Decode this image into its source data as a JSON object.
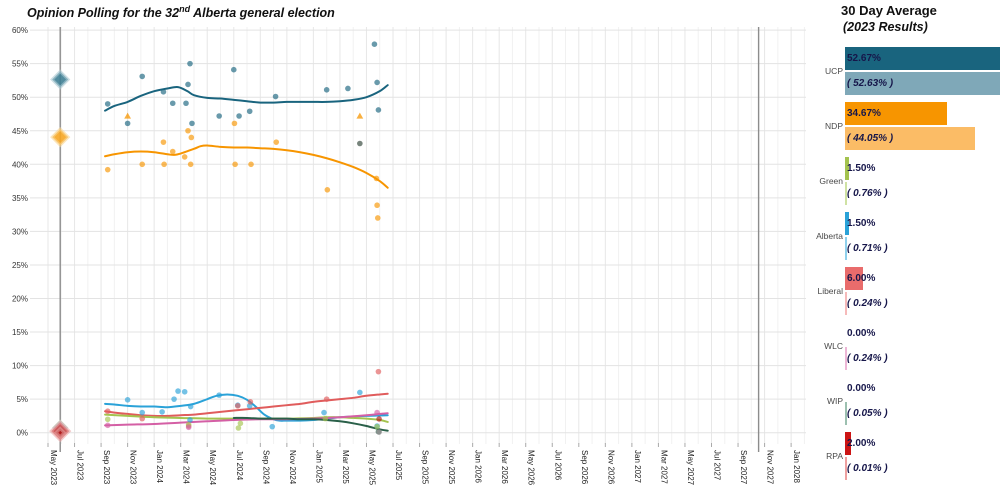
{
  "title": {
    "prefix": "Opinion Polling for the 32",
    "ordinal": "nd",
    "suffix": " Alberta general election"
  },
  "legend_panel": {
    "title": "30 Day Average",
    "subtitle": "(2023 Results)",
    "parties": [
      {
        "name": "UCP",
        "avg_label": "52.67%",
        "avg": 52.67,
        "result_label": "( 52.63% )",
        "result": 52.63,
        "avg_color": "#19647e",
        "result_color": "#7fa8b8"
      },
      {
        "name": "NDP",
        "avg_label": "34.67%",
        "avg": 34.67,
        "result_label": "( 44.05% )",
        "result": 44.05,
        "avg_color": "#f79500",
        "result_color": "#fbbc66"
      },
      {
        "name": "Green",
        "avg_label": "1.50%",
        "avg": 1.5,
        "result_label": "( 0.76% )",
        "result": 0.76,
        "avg_color": "#a4c34f",
        "result_color": "#cfe2a3"
      },
      {
        "name": "Alberta",
        "avg_label": "1.50%",
        "avg": 1.5,
        "result_label": "( 0.71% )",
        "result": 0.71,
        "avg_color": "#2aa2d8",
        "result_color": "#8fd0ec"
      },
      {
        "name": "Liberal",
        "avg_label": "6.00%",
        "avg": 6.0,
        "result_label": "( 0.24% )",
        "result": 0.24,
        "avg_color": "#e96c6c",
        "result_color": "#f6baba"
      },
      {
        "name": "WLC",
        "avg_label": "0.00%",
        "avg": 0.0,
        "result_label": "( 0.24% )",
        "result": 0.24,
        "avg_color": "#d45fa5",
        "result_color": "#edb6d6"
      },
      {
        "name": "WIP",
        "avg_label": "0.00%",
        "avg": 0.0,
        "result_label": "( 0.05% )",
        "result": 0.05,
        "avg_color": "#2a6049",
        "result_color": "#9cc0b0"
      },
      {
        "name": "RPA",
        "avg_label": "2.00%",
        "avg": 2.0,
        "result_label": "( 0.01% )",
        "result": 0.01,
        "avg_color": "#cc1414",
        "result_color": "#eea0a0"
      }
    ]
  },
  "chart_data": {
    "type": "scatter",
    "title": "Opinion Polling for the 32nd Alberta general election",
    "x_unit": "months_since_May_2023",
    "x_axis": {
      "tick_step_months": 2,
      "tick_labels": [
        "May 2023",
        "Jul 2023",
        "Sep 2023",
        "Nov 2023",
        "Jan 2024",
        "Mar 2024",
        "May 2024",
        "Jul 2024",
        "Sep 2024",
        "Nov 2024",
        "Jan 2025",
        "Mar 2025",
        "May 2025",
        "Jul 2025",
        "Sep 2025",
        "Nov 2025",
        "Jan 2026",
        "Mar 2026",
        "May 2026",
        "Jul 2026",
        "Sep 2026",
        "Nov 2026",
        "Jan 2027",
        "Mar 2027",
        "May 2027",
        "Jul 2027",
        "Sep 2027",
        "Nov 2027",
        "Jan 2028"
      ]
    },
    "y_axis": {
      "min": 0,
      "max": 60,
      "step": 5,
      "unit": "%"
    },
    "grid": true,
    "election_lines": [
      {
        "name": "2023 election",
        "m": 0.92
      },
      {
        "name": "next election",
        "m": 53.55
      }
    ],
    "election_results": [
      {
        "party": "UCP",
        "value": 52.63,
        "color": "#3f7f95",
        "halo": "#aac8d2",
        "size": 8
      },
      {
        "party": "NDP",
        "value": 44.05,
        "color": "#f6a623",
        "halo": "#f8d48e",
        "size": 8
      },
      {
        "party": "Green",
        "value": 0.76,
        "color": "#a4c34f",
        "halo": "#d0e2a0",
        "size": 6
      },
      {
        "party": "Alberta",
        "value": 0.71,
        "color": "#2aa2d8",
        "halo": "#9ed6ee",
        "size": 6
      },
      {
        "party": "WLC",
        "value": 0.24,
        "color": "#d45fa5",
        "halo": "#edb6d6",
        "size": 5
      },
      {
        "party": "WIP",
        "value": 0.05,
        "color": "#2a6049",
        "halo": "#9cc0b0",
        "size": 4.5
      },
      {
        "party": "Liberal",
        "value": 0.24,
        "color": "#cd4f4f",
        "halo": "#eba5a5",
        "size": 9
      },
      {
        "party": "RPA",
        "value": 0.01,
        "color": "#b01818",
        "halo": "#e59c9c",
        "size": 4
      }
    ],
    "series": [
      {
        "name": "UCP",
        "color": "#19647e",
        "trend": [
          [
            4.3,
            48.0
          ],
          [
            5,
            48.7
          ],
          [
            6,
            49.3
          ],
          [
            7,
            50.2
          ],
          [
            8,
            50.9
          ],
          [
            9,
            51.3
          ],
          [
            9.8,
            51.5
          ],
          [
            10.5,
            50.9
          ],
          [
            11,
            50.3
          ],
          [
            12,
            49.9
          ],
          [
            13,
            49.8
          ],
          [
            14,
            49.6
          ],
          [
            15,
            49.4
          ],
          [
            16,
            49.2
          ],
          [
            17,
            49.2
          ],
          [
            18,
            49.3
          ],
          [
            19,
            49.3
          ],
          [
            20,
            49.3
          ],
          [
            21,
            49.3
          ],
          [
            22,
            49.4
          ],
          [
            23,
            49.6
          ],
          [
            24,
            50.0
          ],
          [
            25,
            50.9
          ],
          [
            25.6,
            51.8
          ]
        ],
        "points": [
          [
            4.5,
            49.0
          ],
          [
            6.0,
            46.1
          ],
          [
            7.1,
            53.1
          ],
          [
            8.7,
            50.8
          ],
          [
            9.4,
            49.1
          ],
          [
            10.4,
            49.1
          ],
          [
            10.55,
            51.9
          ],
          [
            10.7,
            55.0
          ],
          [
            10.85,
            46.1
          ],
          [
            12.9,
            47.2
          ],
          [
            14.0,
            54.1
          ],
          [
            14.4,
            47.2
          ],
          [
            15.2,
            47.9
          ],
          [
            17.15,
            50.1
          ],
          [
            21.0,
            51.1
          ],
          [
            22.6,
            51.3
          ],
          [
            24.6,
            57.9
          ],
          [
            24.8,
            52.2
          ],
          [
            24.9,
            48.1
          ]
        ],
        "triangles": []
      },
      {
        "name": "NDP",
        "color": "#f79500",
        "trend": [
          [
            4.3,
            41.2
          ],
          [
            5,
            41.5
          ],
          [
            6,
            41.8
          ],
          [
            7,
            41.9
          ],
          [
            8,
            41.8
          ],
          [
            9,
            41.5
          ],
          [
            9.5,
            41.4
          ],
          [
            10,
            41.6
          ],
          [
            11,
            42.3
          ],
          [
            11.5,
            42.7
          ],
          [
            12,
            42.8
          ],
          [
            13,
            42.6
          ],
          [
            14,
            42.5
          ],
          [
            15,
            42.5
          ],
          [
            16,
            42.4
          ],
          [
            17,
            42.3
          ],
          [
            18,
            42.1
          ],
          [
            19,
            41.8
          ],
          [
            20,
            41.4
          ],
          [
            21,
            40.9
          ],
          [
            22,
            40.3
          ],
          [
            23,
            39.6
          ],
          [
            24,
            38.7
          ],
          [
            25,
            37.5
          ],
          [
            25.6,
            36.5
          ]
        ],
        "points": [
          [
            4.5,
            39.2
          ],
          [
            7.1,
            40.0
          ],
          [
            8.7,
            43.3
          ],
          [
            8.75,
            40.0
          ],
          [
            9.4,
            41.9
          ],
          [
            10.3,
            41.1
          ],
          [
            10.55,
            45.0
          ],
          [
            10.8,
            44.0
          ],
          [
            10.75,
            40.0
          ],
          [
            14.05,
            46.1
          ],
          [
            14.1,
            40.0
          ],
          [
            15.3,
            40.0
          ],
          [
            17.2,
            43.3
          ],
          [
            21.05,
            36.2
          ],
          [
            24.75,
            37.9
          ],
          [
            24.8,
            33.9
          ],
          [
            24.85,
            32.0
          ]
        ],
        "triangles": [
          [
            6.0,
            47.2
          ],
          [
            23.5,
            47.2
          ]
        ]
      },
      {
        "name": "Alberta",
        "color": "#2aa2d8",
        "trend": [
          [
            4.3,
            4.3
          ],
          [
            5,
            4.2
          ],
          [
            6,
            4.0
          ],
          [
            7,
            3.9
          ],
          [
            8,
            3.9
          ],
          [
            9,
            3.8
          ],
          [
            10,
            4.0
          ],
          [
            11,
            4.3
          ],
          [
            12,
            5.0
          ],
          [
            12.7,
            5.5
          ],
          [
            13.5,
            5.7
          ],
          [
            14.3,
            5.5
          ],
          [
            15,
            4.9
          ],
          [
            15.7,
            3.8
          ],
          [
            16.3,
            2.7
          ],
          [
            17,
            2.0
          ],
          [
            17.5,
            1.8
          ],
          [
            18,
            1.8
          ],
          [
            19,
            1.8
          ],
          [
            20,
            1.9
          ],
          [
            21,
            2.1
          ],
          [
            22,
            2.3
          ],
          [
            23,
            2.4
          ],
          [
            24,
            2.5
          ],
          [
            25.6,
            2.6
          ]
        ],
        "points": [
          [
            6.0,
            4.9
          ],
          [
            7.1,
            3.0
          ],
          [
            8.6,
            3.1
          ],
          [
            9.5,
            5.0
          ],
          [
            9.8,
            6.2
          ],
          [
            10.3,
            6.1
          ],
          [
            10.75,
            3.9
          ],
          [
            10.7,
            1.9
          ],
          [
            12.9,
            5.6
          ],
          [
            14.3,
            4.1
          ],
          [
            15.2,
            4.0
          ],
          [
            16.9,
            0.9
          ],
          [
            20.8,
            3.0
          ],
          [
            23.5,
            6.0
          ],
          [
            24.8,
            1.0
          ]
        ],
        "triangles": []
      },
      {
        "name": "Liberal",
        "color": "#e05c5c",
        "trend": [
          [
            4.3,
            3.2
          ],
          [
            5,
            3.0
          ],
          [
            6,
            2.8
          ],
          [
            7,
            2.6
          ],
          [
            8,
            2.5
          ],
          [
            9,
            2.5
          ],
          [
            10,
            2.6
          ],
          [
            11,
            2.7
          ],
          [
            12,
            2.9
          ],
          [
            13,
            3.1
          ],
          [
            14,
            3.3
          ],
          [
            15,
            3.5
          ],
          [
            16,
            3.7
          ],
          [
            17,
            3.9
          ],
          [
            18,
            4.1
          ],
          [
            19,
            4.3
          ],
          [
            20,
            4.6
          ],
          [
            21,
            4.8
          ],
          [
            22,
            5.0
          ],
          [
            23,
            5.2
          ],
          [
            24,
            5.5
          ],
          [
            25,
            5.7
          ],
          [
            25.6,
            5.8
          ]
        ],
        "points": [
          [
            4.5,
            3.2
          ],
          [
            7.1,
            2.1
          ],
          [
            10.6,
            1.0
          ],
          [
            14.3,
            4.0
          ],
          [
            15.25,
            4.6
          ],
          [
            21.0,
            5.0
          ],
          [
            24.9,
            9.1
          ]
        ],
        "triangles": []
      },
      {
        "name": "Green",
        "color": "#a4c34f",
        "trend": [
          [
            4.3,
            2.7
          ],
          [
            6,
            2.5
          ],
          [
            8,
            2.3
          ],
          [
            10,
            2.2
          ],
          [
            12,
            2.1
          ],
          [
            14,
            2.1
          ],
          [
            16,
            2.1
          ],
          [
            18,
            2.1
          ],
          [
            20,
            2.2
          ],
          [
            21,
            2.3
          ],
          [
            22,
            2.3
          ],
          [
            23,
            2.2
          ],
          [
            24,
            2.1
          ],
          [
            25,
            1.9
          ],
          [
            25.6,
            1.6
          ]
        ],
        "points": [
          [
            4.5,
            2.0
          ],
          [
            10.6,
            1.2
          ],
          [
            14.35,
            0.7
          ],
          [
            14.5,
            1.4
          ],
          [
            20.9,
            2.1
          ],
          [
            24.8,
            0.9
          ]
        ],
        "triangles": []
      },
      {
        "name": "WLC",
        "color": "#d45fa5",
        "trend": [
          [
            4.3,
            1.1
          ],
          [
            6,
            1.2
          ],
          [
            8,
            1.3
          ],
          [
            10,
            1.5
          ],
          [
            12,
            1.7
          ],
          [
            14,
            1.9
          ],
          [
            16,
            2.0
          ],
          [
            18,
            2.0
          ],
          [
            20,
            2.1
          ],
          [
            22,
            2.3
          ],
          [
            24,
            2.6
          ],
          [
            25,
            2.8
          ],
          [
            25.6,
            2.9
          ]
        ],
        "points": [
          [
            4.5,
            1.1
          ],
          [
            10.6,
            0.8
          ],
          [
            24.8,
            3.0
          ]
        ],
        "triangles": []
      },
      {
        "name": "WIP",
        "color": "#2a6049",
        "trend": [
          [
            14,
            2.2
          ],
          [
            15,
            2.2
          ],
          [
            16,
            2.1
          ],
          [
            17,
            2.1
          ],
          [
            18,
            2.1
          ],
          [
            19,
            2.0
          ],
          [
            20,
            2.0
          ],
          [
            21,
            1.9
          ],
          [
            22,
            1.7
          ],
          [
            23,
            1.4
          ],
          [
            24,
            1.0
          ],
          [
            25,
            0.5
          ],
          [
            25.6,
            0.3
          ]
        ],
        "points": [
          [
            24.9,
            0.15
          ]
        ],
        "triangles": []
      },
      {
        "name": "RPA",
        "color": "#b01818",
        "trend": [],
        "points": [
          [
            24.95,
            2.05
          ]
        ],
        "triangles": []
      }
    ],
    "extra_points": [
      {
        "m": 23.5,
        "v": 43.1,
        "color": "#5f6f65"
      },
      {
        "m": 24.95,
        "v": 0.1,
        "color": "#8f8f8f"
      }
    ]
  }
}
